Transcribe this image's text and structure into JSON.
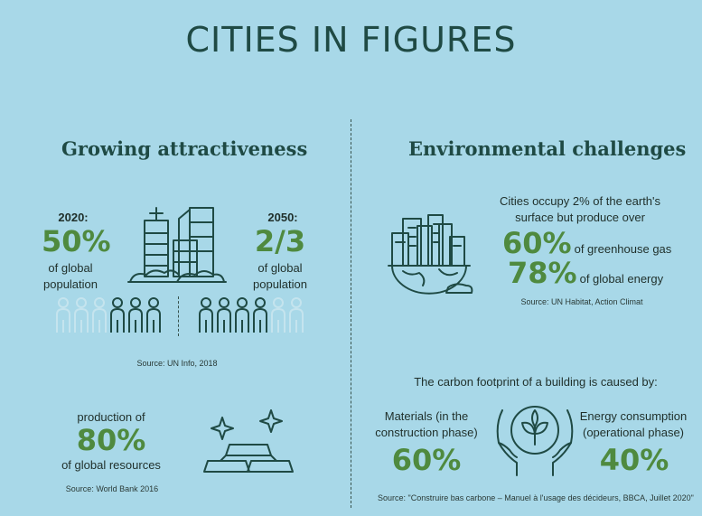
{
  "title": "CITIES IN FIGURES",
  "left": {
    "heading": "Growing attractiveness",
    "year_2020": "2020:",
    "value_2020": "50%",
    "desc_2020": "of global population",
    "year_2050": "2050:",
    "value_2050": "2/3",
    "desc_2050": "of global population",
    "source_population": "Source: UN Info, 2018",
    "production_label": "production of",
    "production_value": "80%",
    "production_desc": "of global resources",
    "source_resources": "Source: World Bank 2016",
    "people_2020_highlight_fraction": 0.5,
    "people_2050_highlight_fraction": 0.667
  },
  "right": {
    "heading": "Environmental challenges",
    "intro": "Cities occupy 2% of the earth's surface but produce over",
    "ghg_value": "60%",
    "ghg_desc": "of greenhouse gas",
    "energy_value": "78%",
    "energy_desc": "of global energy",
    "source_env": "Source: UN Habitat, Action Climat",
    "carbon_title": "The carbon footprint of a building is caused by:",
    "materials_label": "Materials (in the construction phase)",
    "materials_value": "60%",
    "energy_cons_label": "Energy consumption (operational phase)",
    "energy_cons_value": "40%",
    "source_carbon": "Source: \"Construire bas carbone – Manuel à l'usage des décideurs, BBCA, Juillet 2020\""
  },
  "colors": {
    "background": "#a8d8e8",
    "accent_green": "#4f8a3f",
    "dark": "#1f4a44",
    "faded": "#c5e4ee"
  },
  "icons": [
    "skyscrapers-icon",
    "people-icon",
    "gold-bars-icon",
    "sparkle-icon",
    "city-globe-icon",
    "hands-plant-icon"
  ]
}
